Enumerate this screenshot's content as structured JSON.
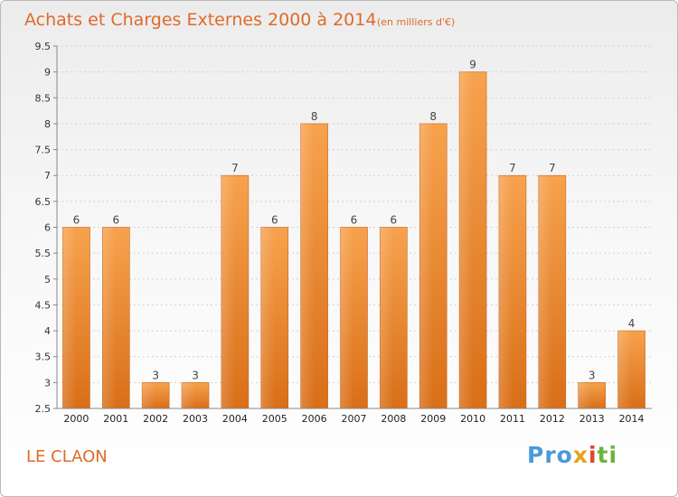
{
  "chart_data": {
    "type": "bar",
    "title": "Achats et Charges Externes 2000 à 2014",
    "unit_label": "(en milliers d'€)",
    "categories": [
      "2000",
      "2001",
      "2002",
      "2003",
      "2004",
      "2005",
      "2006",
      "2007",
      "2008",
      "2009",
      "2010",
      "2011",
      "2012",
      "2013",
      "2014"
    ],
    "values": [
      6,
      6,
      3,
      3,
      7,
      6,
      8,
      6,
      6,
      8,
      9,
      7,
      7,
      3,
      4
    ],
    "ylim": [
      2.5,
      9.5
    ],
    "yticks": [
      "2.5",
      "3",
      "3.5",
      "4",
      "4.5",
      "5",
      "5.5",
      "6",
      "6.5",
      "7",
      "7.5",
      "8",
      "8.5",
      "9",
      "9.5"
    ],
    "grid": true,
    "bar_color": "#f0903c"
  },
  "location": "LE CLAON",
  "logo": {
    "p1": "Pro",
    "p2": "x",
    "p3": "i",
    "p4": "ti"
  }
}
